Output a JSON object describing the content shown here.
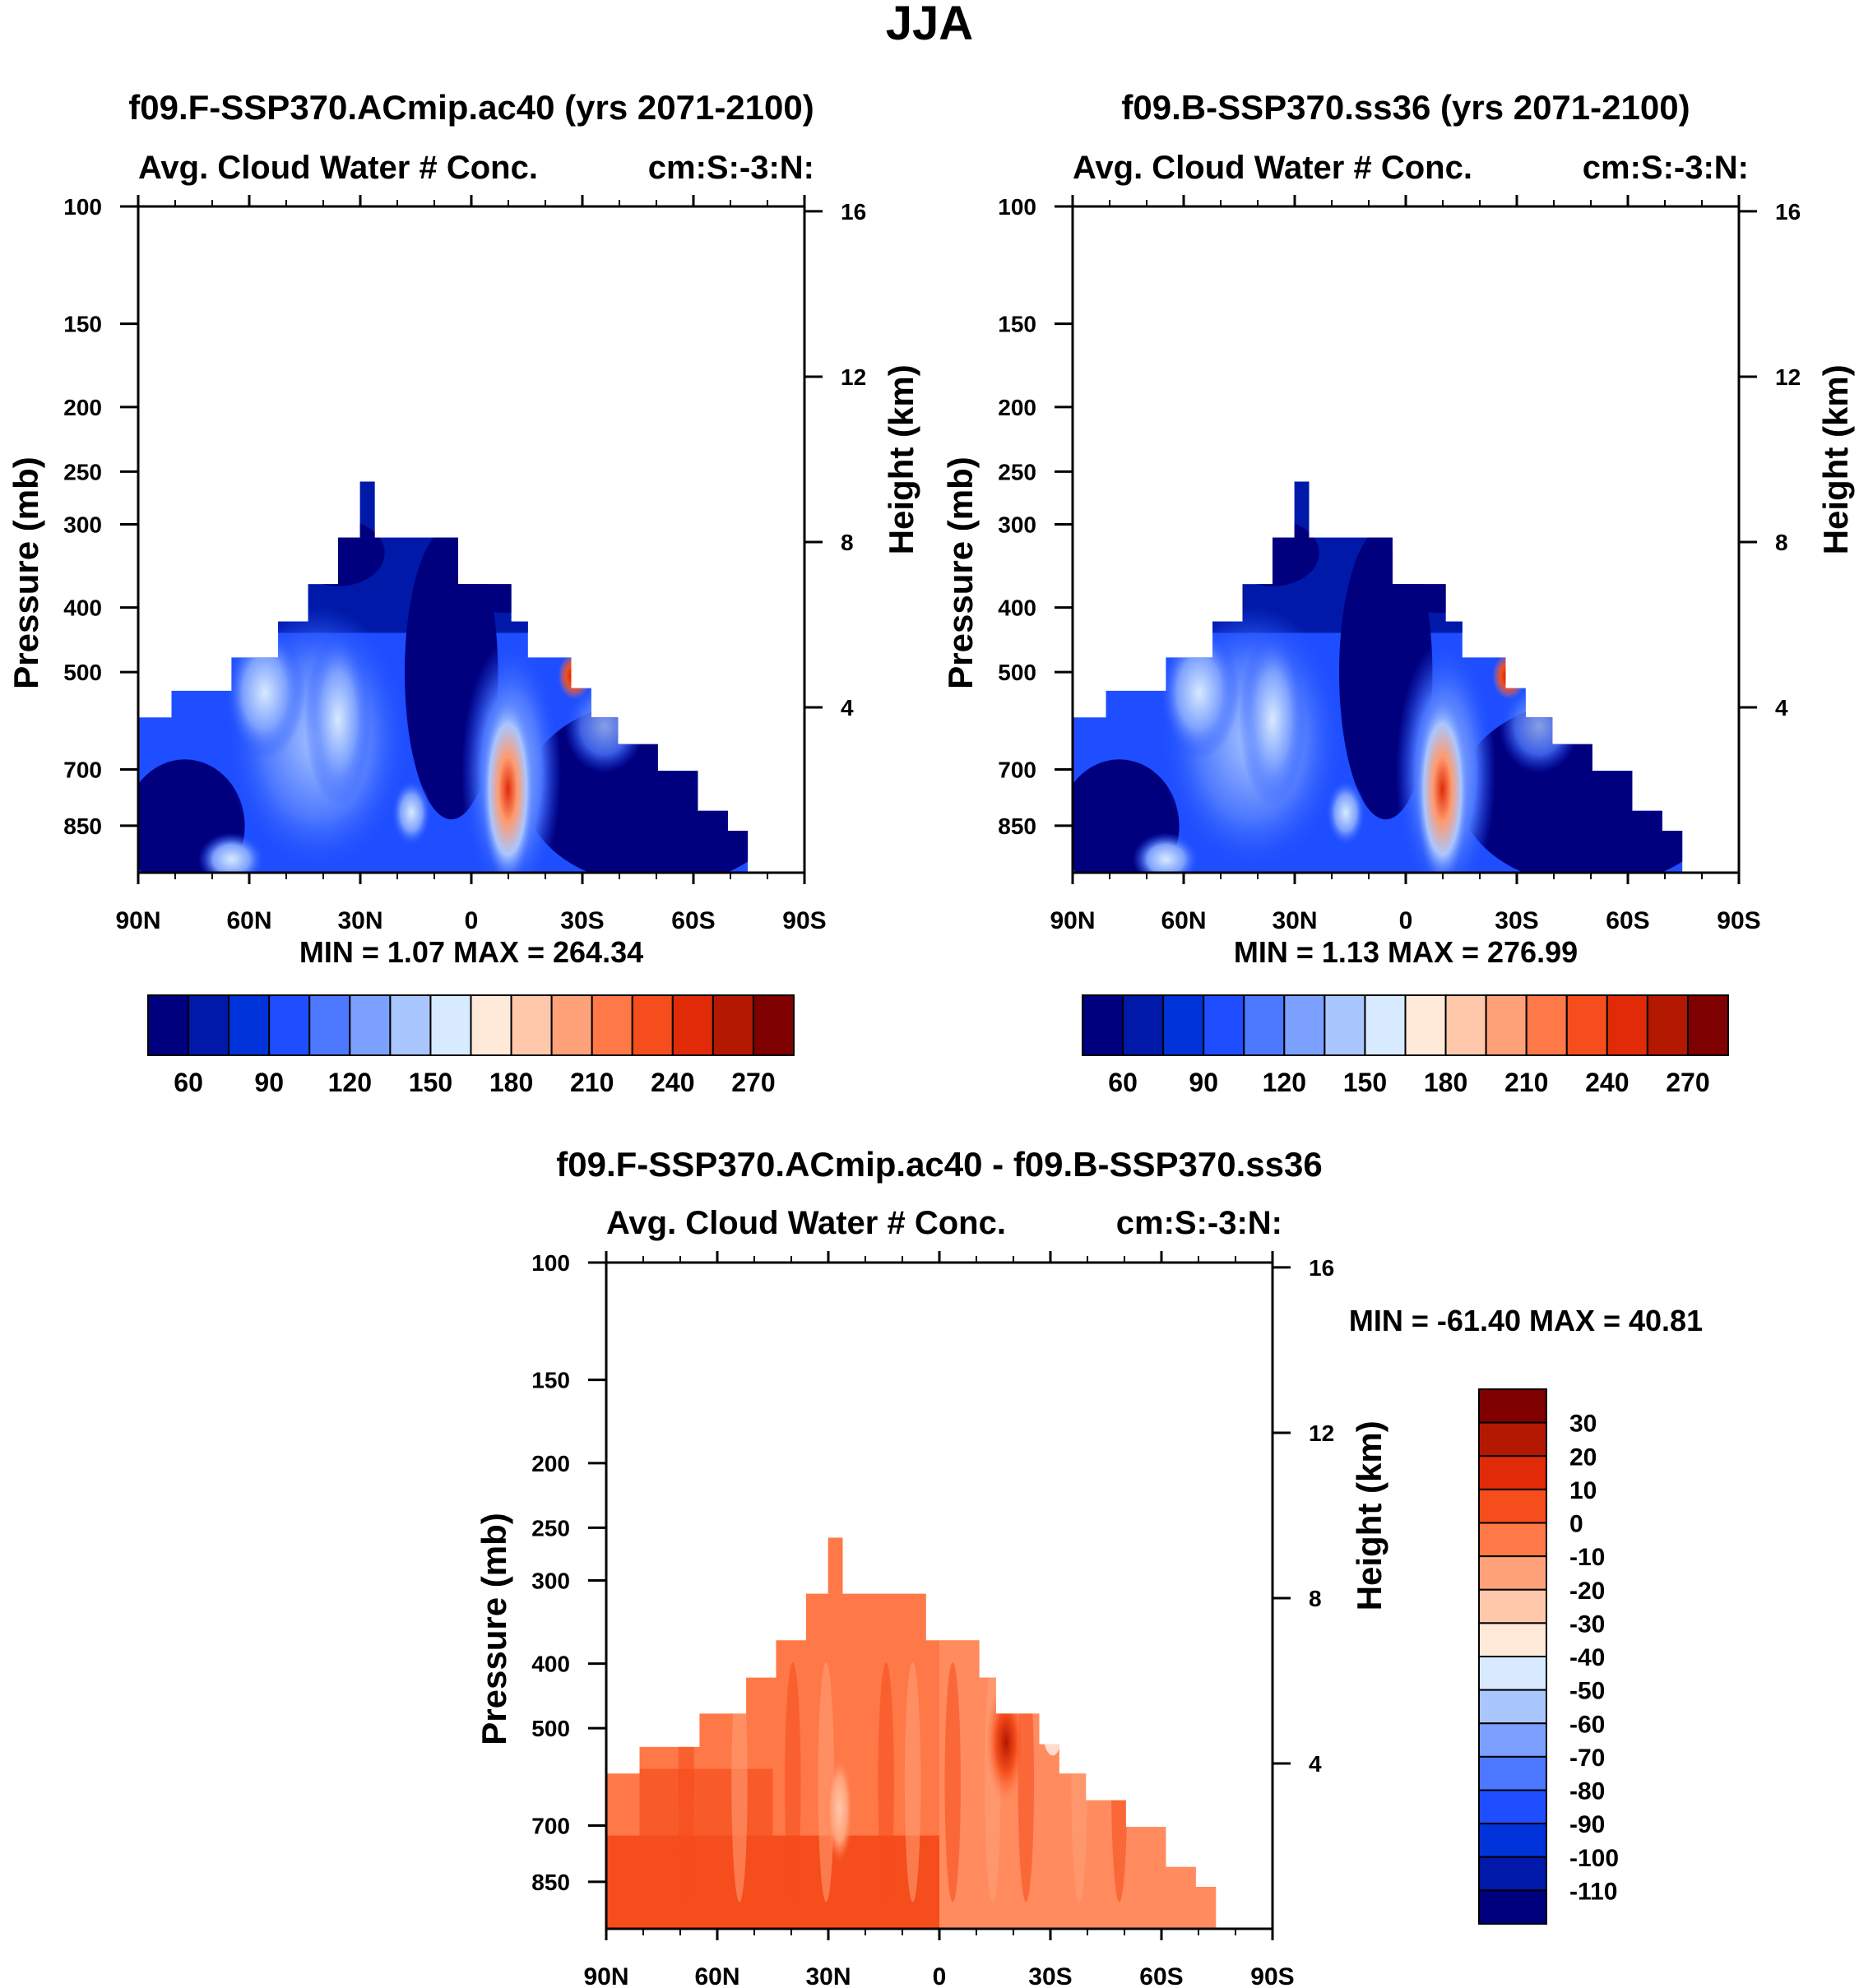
{
  "figure": {
    "title": "JJA",
    "ylabel_left": "Pressure (mb)",
    "ylabel_right": "Height (km)",
    "lat_ticks": [
      "90N",
      "60N",
      "30N",
      "0",
      "30S",
      "60S",
      "90S"
    ],
    "pressure_ticks": [
      100,
      150,
      200,
      250,
      300,
      400,
      500,
      700,
      850
    ],
    "height_ticks": [
      16,
      12,
      8,
      4
    ]
  },
  "chart_data": [
    {
      "type": "heatmap",
      "id": "panel-ac40",
      "title": "f09.F-SSP370.ACmip.ac40 (yrs 2071-2100)",
      "left_string": "Avg. Cloud Water # Conc.",
      "right_string": "cm:S:-3:N:",
      "stats": "MIN =   1.07  MAX = 264.34",
      "min": 1.07,
      "max": 264.34,
      "xlim": [
        90,
        -90
      ],
      "ylim_mb": [
        1000,
        100
      ],
      "colorbar": {
        "orientation": "horizontal",
        "labels": [
          "60",
          "90",
          "120",
          "150",
          "180",
          "210",
          "240",
          "270"
        ],
        "colors": [
          "#00007f",
          "#0019a8",
          "#0033d9",
          "#1e4eff",
          "#4c78ff",
          "#7ca0ff",
          "#aac6ff",
          "#d7eaff",
          "#ffe9d9",
          "#ffc8ab",
          "#ffa27a",
          "#ff7847",
          "#f54d1c",
          "#e02a08",
          "#b51800",
          "#7f0000"
        ]
      }
    },
    {
      "type": "heatmap",
      "id": "panel-ss36",
      "title": "f09.B-SSP370.ss36 (yrs 2071-2100)",
      "left_string": "Avg. Cloud Water # Conc.",
      "right_string": "cm:S:-3:N:",
      "stats": "MIN =   1.13  MAX = 276.99",
      "min": 1.13,
      "max": 276.99,
      "xlim": [
        90,
        -90
      ],
      "ylim_mb": [
        1000,
        100
      ],
      "colorbar": {
        "orientation": "horizontal",
        "labels": [
          "60",
          "90",
          "120",
          "150",
          "180",
          "210",
          "240",
          "270"
        ],
        "colors": [
          "#00007f",
          "#0019a8",
          "#0033d9",
          "#1e4eff",
          "#4c78ff",
          "#7ca0ff",
          "#aac6ff",
          "#d7eaff",
          "#ffe9d9",
          "#ffc8ab",
          "#ffa27a",
          "#ff7847",
          "#f54d1c",
          "#e02a08",
          "#b51800",
          "#7f0000"
        ]
      }
    },
    {
      "type": "heatmap",
      "id": "panel-diff",
      "title": "f09.F-SSP370.ACmip.ac40 - f09.B-SSP370.ss36",
      "left_string": "Avg. Cloud Water # Conc.",
      "right_string": "cm:S:-3:N:",
      "stats": "MIN = -61.40  MAX =  40.81",
      "min": -61.4,
      "max": 40.81,
      "xlim": [
        90,
        -90
      ],
      "ylim_mb": [
        1000,
        100
      ],
      "colorbar": {
        "orientation": "vertical",
        "labels": [
          "30",
          "20",
          "10",
          "0",
          "-10",
          "-20",
          "-30",
          "-40",
          "-50",
          "-60",
          "-70",
          "-80",
          "-90",
          "-100",
          "-110"
        ],
        "colors": [
          "#7f0000",
          "#b51800",
          "#e02a08",
          "#f54d1c",
          "#ff7847",
          "#ffa27a",
          "#ffc8ab",
          "#ffe9d9",
          "#d7eaff",
          "#aac6ff",
          "#7ca0ff",
          "#4c78ff",
          "#1e4eff",
          "#0033d9",
          "#0019a8",
          "#00007f"
        ]
      }
    }
  ]
}
